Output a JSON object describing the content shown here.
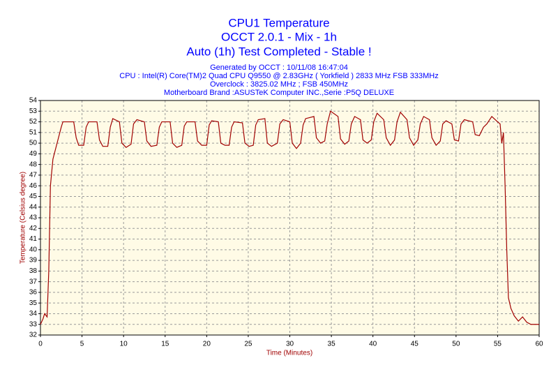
{
  "chart_data": {
    "type": "line",
    "title": "CPU1 Temperature",
    "subtitle": [
      "OCCT 2.0.1 - Mix - 1h",
      "Auto (1h) Test Completed - Stable !"
    ],
    "info": [
      "Generated by OCCT : 10/11/08 16:47:04",
      "CPU : Intel(R) Core(TM)2 Quad CPU Q9550 @ 2.83GHz ( Yorkfield ) 2833 MHz FSB 333MHz",
      "Overclock : 3825.02 MHz ; FSB 450MHz",
      "Motherboard Brand :ASUSTeK Computer INC.,Serie :P5Q DELUXE"
    ],
    "xlabel": "Time (Minutes)",
    "ylabel": "Temperature (Celsius degree)",
    "color": "#a00000",
    "grid": true,
    "xlim": [
      0,
      60
    ],
    "ylim": [
      32,
      54
    ],
    "xticks": [
      0,
      5,
      10,
      15,
      20,
      25,
      30,
      35,
      40,
      45,
      50,
      55,
      60
    ],
    "yticks": [
      32,
      33,
      34,
      35,
      36,
      37,
      38,
      39,
      40,
      41,
      42,
      43,
      44,
      45,
      46,
      47,
      48,
      49,
      50,
      51,
      52,
      53,
      54
    ],
    "x": [
      0,
      0.3,
      0.5,
      0.8,
      1.0,
      1.2,
      1.5,
      2,
      2.5,
      2.7,
      4,
      4.3,
      4.6,
      5.2,
      5.5,
      5.8,
      6.8,
      7.1,
      7.5,
      8.1,
      8.4,
      8.7,
      9.5,
      9.8,
      10.3,
      10.9,
      11.2,
      11.6,
      12.5,
      12.8,
      13.3,
      14,
      14.3,
      14.6,
      15.6,
      15.9,
      16.4,
      17,
      17.3,
      17.6,
      18.6,
      18.9,
      19.4,
      20,
      20.3,
      20.6,
      21.4,
      21.7,
      22.2,
      22.7,
      23,
      23.3,
      24.3,
      24.6,
      25.1,
      25.6,
      25.9,
      26.2,
      27,
      27.3,
      27.8,
      28.5,
      28.8,
      29.2,
      30,
      30.3,
      30.8,
      31.3,
      31.6,
      31.9,
      32.9,
      33.2,
      33.7,
      34.2,
      34.5,
      34.9,
      35.8,
      36.1,
      36.6,
      37.1,
      37.4,
      37.8,
      38.5,
      38.8,
      39.3,
      39.8,
      40.1,
      40.5,
      41.3,
      41.6,
      42.1,
      42.6,
      42.9,
      43.3,
      44.1,
      44.4,
      44.9,
      45.4,
      45.7,
      46.1,
      46.8,
      47.1,
      47.6,
      48.1,
      48.4,
      48.8,
      49.5,
      49.8,
      50.3,
      50.6,
      51,
      52,
      52.3,
      52.8,
      53.3,
      53.7,
      54.3,
      55,
      55.3,
      55.5,
      55.7,
      55.9,
      56.1,
      56.3,
      56.6,
      57,
      57.5,
      58,
      58.5,
      59,
      60
    ],
    "values": [
      33,
      33.5,
      34,
      33.7,
      38,
      46,
      48.5,
      50,
      51.5,
      52,
      52,
      50.5,
      49.8,
      49.8,
      51.5,
      52,
      52,
      50.3,
      49.7,
      49.7,
      51.5,
      52.3,
      52,
      50,
      49.6,
      49.9,
      51.8,
      52.2,
      52,
      50.2,
      49.7,
      49.8,
      51.5,
      52,
      52,
      50,
      49.6,
      49.8,
      51.6,
      52,
      52,
      50.2,
      49.8,
      49.8,
      51.7,
      52.1,
      52,
      50,
      49.8,
      49.8,
      51.5,
      52,
      51.9,
      50,
      49.7,
      49.8,
      51.7,
      52.2,
      52.3,
      50,
      49.7,
      50,
      51.8,
      52.2,
      52,
      50,
      49.5,
      50,
      51.7,
      52.3,
      52.5,
      50.5,
      50,
      50.2,
      51.8,
      53,
      52.5,
      50.4,
      49.9,
      50.2,
      51.8,
      52.5,
      52.2,
      50.3,
      50,
      50.3,
      52,
      52.8,
      52.2,
      50.5,
      49.8,
      50.3,
      52,
      52.9,
      52.2,
      50.5,
      49.8,
      50.3,
      51.8,
      52.5,
      52.2,
      50.5,
      49.8,
      50.2,
      51.8,
      52.1,
      51.8,
      50.3,
      50.2,
      51.8,
      52.2,
      52,
      50.8,
      50.7,
      51.5,
      51.8,
      52.5,
      52,
      51.8,
      50,
      51,
      46,
      40,
      35.5,
      34.5,
      33.8,
      33.3,
      33.7,
      33.2,
      33,
      33
    ]
  }
}
